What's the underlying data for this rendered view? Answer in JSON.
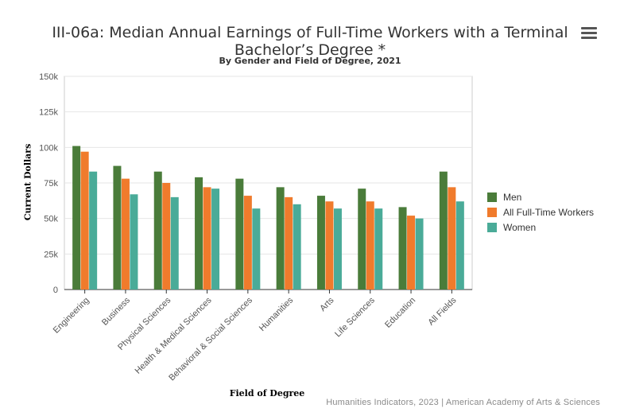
{
  "chart_data": {
    "type": "bar",
    "title": "III-06a: Median Annual Earnings of Full-Time Workers with a Terminal Bachelor’s Degree *",
    "subtitle": "By Gender and Field of Degree, 2021",
    "xlabel": "Field of Degree",
    "ylabel": "Current Dollars",
    "ylim": [
      0,
      150000
    ],
    "yticks": [
      0,
      25000,
      50000,
      75000,
      100000,
      125000,
      150000
    ],
    "ytick_labels": [
      "0",
      "25k",
      "50k",
      "75k",
      "100k",
      "125k",
      "150k"
    ],
    "categories": [
      "Engineering",
      "Business",
      "Physical Sciences",
      "Health & Medical Sciences",
      "Behavioral & Social Sciences",
      "Humanities",
      "Arts",
      "Life Sciences",
      "Education",
      "All Fields"
    ],
    "series": [
      {
        "name": "Men",
        "color": "#4a7c3a",
        "values": [
          101000,
          87000,
          83000,
          79000,
          78000,
          72000,
          66000,
          71000,
          58000,
          83000
        ]
      },
      {
        "name": "All Full-Time Workers",
        "color": "#f07b2c",
        "values": [
          97000,
          78000,
          75000,
          72000,
          66000,
          65000,
          62000,
          62000,
          52000,
          72000
        ]
      },
      {
        "name": "Women",
        "color": "#4aab98",
        "values": [
          83000,
          67000,
          65000,
          71000,
          57000,
          60000,
          57000,
          57000,
          50000,
          62000
        ]
      }
    ],
    "legend_position": "right",
    "grid": true
  },
  "credits": "Humanities Indicators, 2023 | American Academy of Arts & Sciences"
}
